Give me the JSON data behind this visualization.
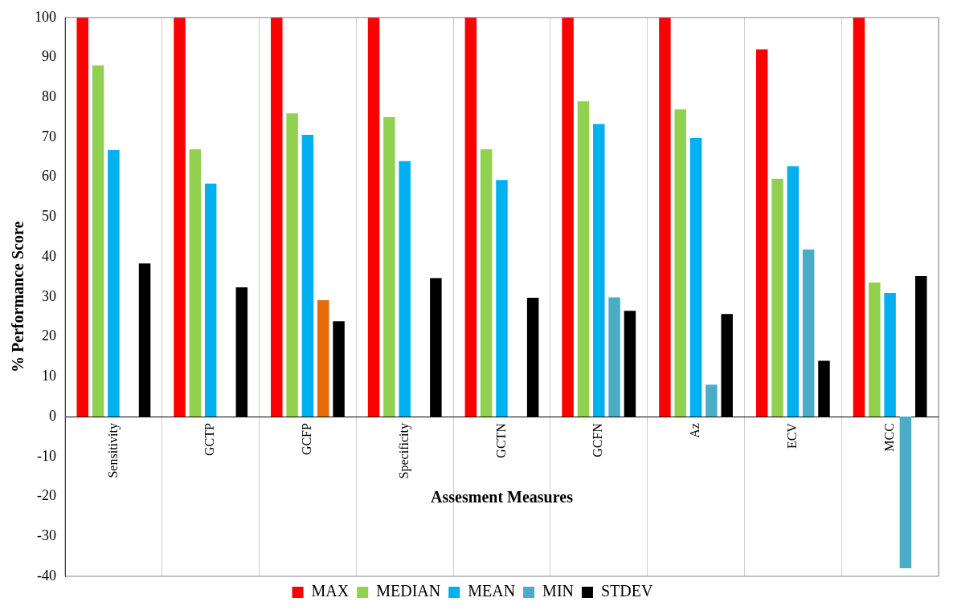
{
  "chart_data": {
    "type": "bar",
    "xlabel": "Assesment Measures",
    "ylabel": "% Performance Score",
    "categories": [
      "Sensitivity",
      "GCTP",
      "GCFP",
      "Specificity",
      "GCTN",
      "GCFN",
      "Az",
      "ECV",
      "MCC"
    ],
    "series": [
      {
        "name": "MAX",
        "color": "#ff0000",
        "values": [
          100,
          100,
          100,
          100,
          100,
          100,
          100,
          92,
          100
        ]
      },
      {
        "name": "MEDIAN",
        "color": "#92d050",
        "values": [
          88,
          67,
          76,
          75,
          67,
          79,
          77,
          59.6,
          33.6
        ]
      },
      {
        "name": "MEAN",
        "color": "#00b0f0",
        "values": [
          66.8,
          58.4,
          70.6,
          64,
          59.3,
          73.3,
          69.8,
          62.7,
          31
        ]
      },
      {
        "name": "MIN",
        "color": "#4bacc6",
        "colors": [
          "#4bacc6",
          "#4bacc6",
          "#e46c0a",
          "#4bacc6",
          "#4bacc6",
          "#4bacc6",
          "#4bacc6",
          "#4bacc6",
          "#4bacc6"
        ],
        "values": [
          0,
          0,
          29.2,
          0,
          0,
          29.9,
          8,
          41.9,
          -38
        ]
      },
      {
        "name": "STDEV",
        "color": "#000000",
        "values": [
          38.4,
          32.4,
          23.9,
          34.7,
          29.8,
          26.5,
          25.7,
          14,
          35.2
        ]
      }
    ],
    "ylim": [
      -40,
      100
    ],
    "yticks": [
      -40,
      -30,
      -20,
      -10,
      0,
      10,
      20,
      30,
      40,
      50,
      60,
      70,
      80,
      90,
      100
    ],
    "grid": "x",
    "legend": "bottom"
  }
}
